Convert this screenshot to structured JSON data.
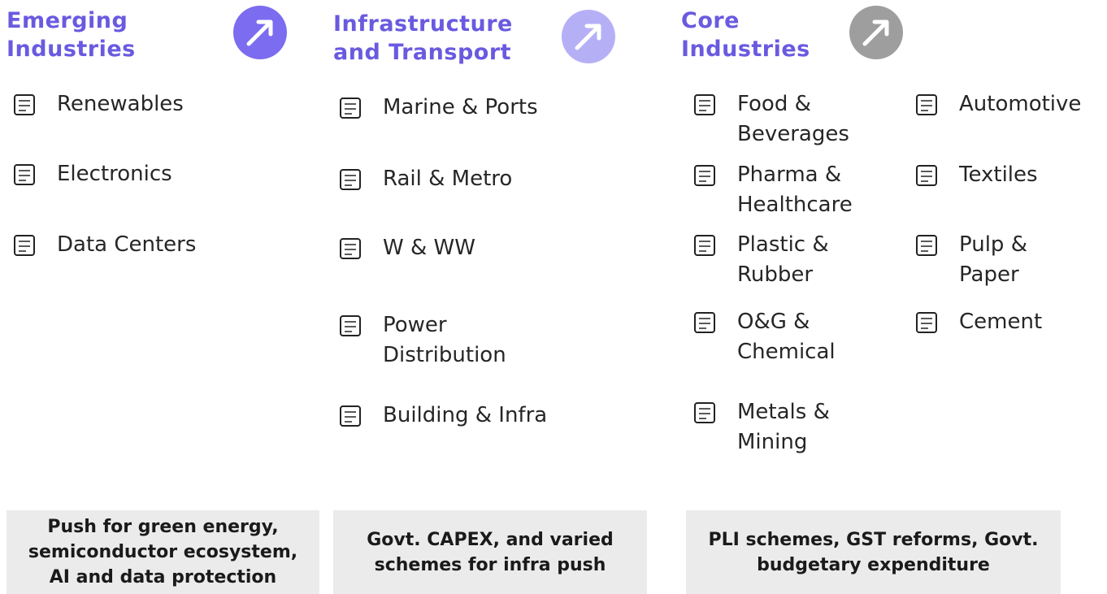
{
  "columns": [
    {
      "title": [
        "Emerging",
        "Industries"
      ],
      "items": [
        {
          "label": [
            "Renewables"
          ]
        },
        {
          "label": [
            "Electronics"
          ]
        },
        {
          "label": [
            "Data Centers"
          ]
        }
      ],
      "note": [
        "Push for green energy,",
        "semiconductor ecosystem,",
        "AI and data protection"
      ]
    },
    {
      "title": [
        "Infrastructure",
        "and Transport"
      ],
      "items": [
        {
          "label": [
            "Marine & Ports"
          ]
        },
        {
          "label": [
            "Rail & Metro"
          ]
        },
        {
          "label": [
            "W & WW"
          ]
        },
        {
          "label": [
            "Power",
            "Distribution"
          ]
        },
        {
          "label": [
            "Building & Infra"
          ]
        }
      ],
      "note": [
        "Govt. CAPEX, and varied",
        "schemes for infra push"
      ]
    },
    {
      "title": [
        "Core",
        "Industries"
      ],
      "items": [
        {
          "label": [
            "Food &",
            "Beverages"
          ]
        },
        {
          "label": [
            "Pharma &",
            "Healthcare"
          ]
        },
        {
          "label": [
            "Plastic &",
            "Rubber"
          ]
        },
        {
          "label": [
            "O&G &",
            "Chemical"
          ]
        },
        {
          "label": [
            "Metals &",
            "Mining"
          ]
        },
        {
          "label": [
            "Automotive"
          ]
        },
        {
          "label": [
            "Textiles"
          ]
        },
        {
          "label": [
            "Pulp &",
            "Paper"
          ]
        },
        {
          "label": [
            "Cement"
          ]
        }
      ],
      "note": [
        "PLI schemes, GST reforms, Govt.",
        "budgetary expenditure"
      ]
    }
  ]
}
